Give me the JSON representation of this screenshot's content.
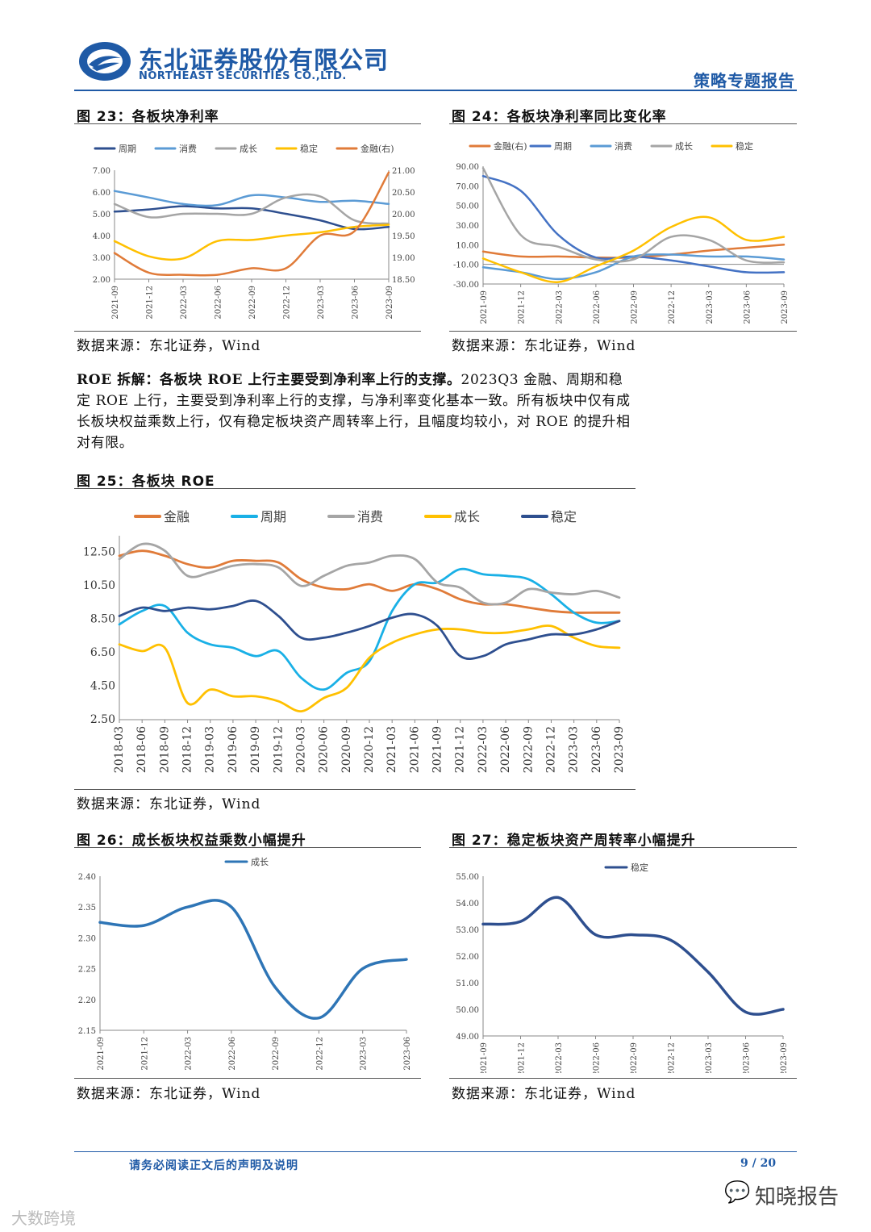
{
  "header": {
    "company_cn": "东北证券股份有限公司",
    "company_en": "NORTHEAST SECURITIES CO.,LTD.",
    "report_type": "策略专题报告",
    "brand_color": "#1f5aa6"
  },
  "figures": {
    "fig23": {
      "title": "图  23：各板块净利率",
      "source": "数据来源：东北证券，Wind"
    },
    "fig24": {
      "title": "图  24：各板块净利率同比变化率",
      "source": "数据来源：东北证券，Wind"
    },
    "fig25": {
      "title": "图  25：各板块 ROE",
      "source": "数据来源：东北证券，Wind"
    },
    "fig26": {
      "title": "图  26：成长板块权益乘数小幅提升",
      "source": "数据来源：东北证券，Wind"
    },
    "fig27": {
      "title": "图  27：稳定板块资产周转率小幅提升",
      "source": "数据来源：东北证券，Wind"
    }
  },
  "paragraph": {
    "lead": "ROE 拆解：各板块 ROE 上行主要受到净利率上行的支撑。",
    "body": "2023Q3 金融、周期和稳定 ROE 上行，主要受到净利率上行的支撑，与净利率变化基本一致。所有板块中仅有成长板块权益乘数上行，仅有稳定板块资产周转率上行，且幅度均较小，对 ROE 的提升相对有限。"
  },
  "footer": {
    "disclaimer": "请务必阅读正文后的声明及说明",
    "page": "9 / 20",
    "watermark_right": "知晓报告",
    "watermark_left": "大数跨境"
  },
  "chart_data": [
    {
      "id": "fig23",
      "type": "line",
      "x": [
        "2021-09",
        "2021-12",
        "2022-03",
        "2022-06",
        "2022-09",
        "2022-12",
        "2023-03",
        "2023-06",
        "2023-09"
      ],
      "ylim": [
        2,
        7
      ],
      "yticks": [
        "7.00",
        "6.00",
        "5.00",
        "4.00",
        "3.00",
        "2.00"
      ],
      "y2lim": [
        18.5,
        21
      ],
      "y2ticks": [
        "21.00",
        "20.50",
        "20.00",
        "19.50",
        "19.00",
        "18.50"
      ],
      "series": [
        {
          "name": "周期",
          "color": "#2e4f8f",
          "axis": "left",
          "values": [
            5.1,
            5.2,
            5.35,
            5.25,
            5.25,
            5.0,
            4.7,
            4.3,
            4.4
          ]
        },
        {
          "name": "消费",
          "color": "#5b9bd5",
          "axis": "left",
          "values": [
            6.05,
            5.75,
            5.45,
            5.4,
            5.85,
            5.75,
            5.55,
            5.6,
            5.45
          ]
        },
        {
          "name": "成长",
          "color": "#a5a5a5",
          "axis": "left",
          "values": [
            5.45,
            4.85,
            5.0,
            5.0,
            5.0,
            5.75,
            5.8,
            4.7,
            4.55
          ]
        },
        {
          "name": "稳定",
          "color": "#ffc000",
          "axis": "left",
          "values": [
            3.75,
            3.05,
            2.95,
            3.75,
            3.8,
            4.0,
            4.15,
            4.4,
            4.5
          ]
        },
        {
          "name": "金融(右)",
          "color": "#e07b39",
          "axis": "right",
          "values": [
            19.1,
            18.65,
            18.6,
            18.6,
            18.75,
            18.75,
            19.5,
            19.6,
            20.95
          ]
        }
      ]
    },
    {
      "id": "fig24",
      "type": "line",
      "x": [
        "2021-09",
        "2021-12",
        "2022-03",
        "2022-06",
        "2022-09",
        "2022-12",
        "2023-03",
        "2023-06",
        "2023-09"
      ],
      "ylim": [
        -30,
        90
      ],
      "yticks": [
        "90.00",
        "70.00",
        "50.00",
        "30.00",
        "10.00",
        "-10.00",
        "-30.00"
      ],
      "series": [
        {
          "name": "金融(右)",
          "color": "#e07b39",
          "values": [
            3,
            -2,
            -2,
            -3,
            -3,
            0,
            4,
            7,
            10
          ]
        },
        {
          "name": "周期",
          "color": "#4472c4",
          "values": [
            80,
            65,
            20,
            -3,
            -2,
            -6,
            -12,
            -18,
            -18
          ]
        },
        {
          "name": "消费",
          "color": "#5b9bd5",
          "values": [
            -13,
            -18,
            -25,
            -18,
            -2,
            0,
            -2,
            -2,
            -5
          ]
        },
        {
          "name": "成长",
          "color": "#a5a5a5",
          "values": [
            88,
            20,
            8,
            -5,
            -5,
            18,
            15,
            -6,
            -8
          ]
        },
        {
          "name": "稳定",
          "color": "#ffc000",
          "values": [
            -4,
            -18,
            -28,
            -12,
            4,
            28,
            38,
            15,
            18
          ]
        }
      ]
    },
    {
      "id": "fig25",
      "type": "line",
      "x": [
        "2018-03",
        "2018-06",
        "2018-09",
        "2018-12",
        "2019-03",
        "2019-06",
        "2019-09",
        "2019-12",
        "2020-03",
        "2020-06",
        "2020-09",
        "2020-12",
        "2021-03",
        "2021-06",
        "2021-09",
        "2021-12",
        "2022-03",
        "2022-06",
        "2022-09",
        "2022-12",
        "2023-03",
        "2023-06",
        "2023-09"
      ],
      "ylim": [
        2.5,
        13.5
      ],
      "yticks": [
        "12.50",
        "10.50",
        "8.50",
        "6.50",
        "4.50",
        "2.50"
      ],
      "series": [
        {
          "name": "金融",
          "color": "#e07b39",
          "values": [
            12.3,
            12.6,
            12.3,
            11.8,
            11.6,
            12.0,
            12.0,
            11.9,
            10.9,
            10.4,
            10.3,
            10.6,
            10.2,
            10.6,
            10.3,
            9.7,
            9.4,
            9.4,
            9.2,
            9.0,
            8.9,
            8.9,
            8.9
          ]
        },
        {
          "name": "周期",
          "color": "#19b0e6",
          "values": [
            8.2,
            9.0,
            9.3,
            7.7,
            7.0,
            6.8,
            6.3,
            6.6,
            5.0,
            4.3,
            5.3,
            6.0,
            9.0,
            10.6,
            10.7,
            11.5,
            11.2,
            11.1,
            10.9,
            10.0,
            8.9,
            8.3,
            8.4
          ]
        },
        {
          "name": "消费",
          "color": "#a5a5a5",
          "values": [
            12.1,
            13.0,
            12.6,
            11.1,
            11.3,
            11.7,
            11.8,
            11.6,
            10.5,
            11.1,
            11.7,
            11.9,
            12.3,
            12.1,
            10.7,
            10.4,
            9.5,
            9.5,
            10.3,
            10.1,
            10.0,
            10.2,
            9.8
          ]
        },
        {
          "name": "成长",
          "color": "#ffc000",
          "values": [
            7.0,
            6.6,
            6.8,
            3.5,
            4.3,
            3.9,
            3.9,
            3.6,
            3.0,
            3.8,
            4.4,
            6.2,
            7.1,
            7.6,
            7.9,
            7.9,
            7.7,
            7.7,
            7.9,
            8.1,
            7.4,
            6.9,
            6.8
          ]
        },
        {
          "name": "稳定",
          "color": "#2e4f8f",
          "values": [
            8.7,
            9.2,
            9.0,
            9.2,
            9.1,
            9.3,
            9.6,
            8.7,
            7.4,
            7.4,
            7.7,
            8.1,
            8.6,
            8.8,
            8.1,
            6.3,
            6.3,
            7.0,
            7.3,
            7.6,
            7.6,
            7.9,
            8.4
          ]
        }
      ]
    },
    {
      "id": "fig26",
      "type": "line",
      "x": [
        "2021-09",
        "2021-12",
        "2022-03",
        "2022-06",
        "2022-09",
        "2022-12",
        "2023-03",
        "2023-06"
      ],
      "ylim": [
        2.15,
        2.4
      ],
      "yticks": [
        "2.40",
        "2.35",
        "2.30",
        "2.25",
        "2.20",
        "2.15"
      ],
      "series": [
        {
          "name": "成长",
          "color": "#2e75b6",
          "values": [
            2.325,
            2.32,
            2.35,
            2.35,
            2.22,
            2.17,
            2.25,
            2.265
          ]
        }
      ]
    },
    {
      "id": "fig27",
      "type": "line",
      "x": [
        "2021-09",
        "2021-12",
        "2022-03",
        "2022-06",
        "2022-09",
        "2022-12",
        "2023-03",
        "2023-06",
        "2023-09"
      ],
      "ylim": [
        49,
        55
      ],
      "yticks": [
        "55.00",
        "54.00",
        "53.00",
        "52.00",
        "51.00",
        "50.00",
        "49.00"
      ],
      "series": [
        {
          "name": "稳定",
          "color": "#2e4f8f",
          "values": [
            53.2,
            53.3,
            54.2,
            52.8,
            52.8,
            52.6,
            51.4,
            49.9,
            50.0
          ]
        }
      ]
    }
  ]
}
